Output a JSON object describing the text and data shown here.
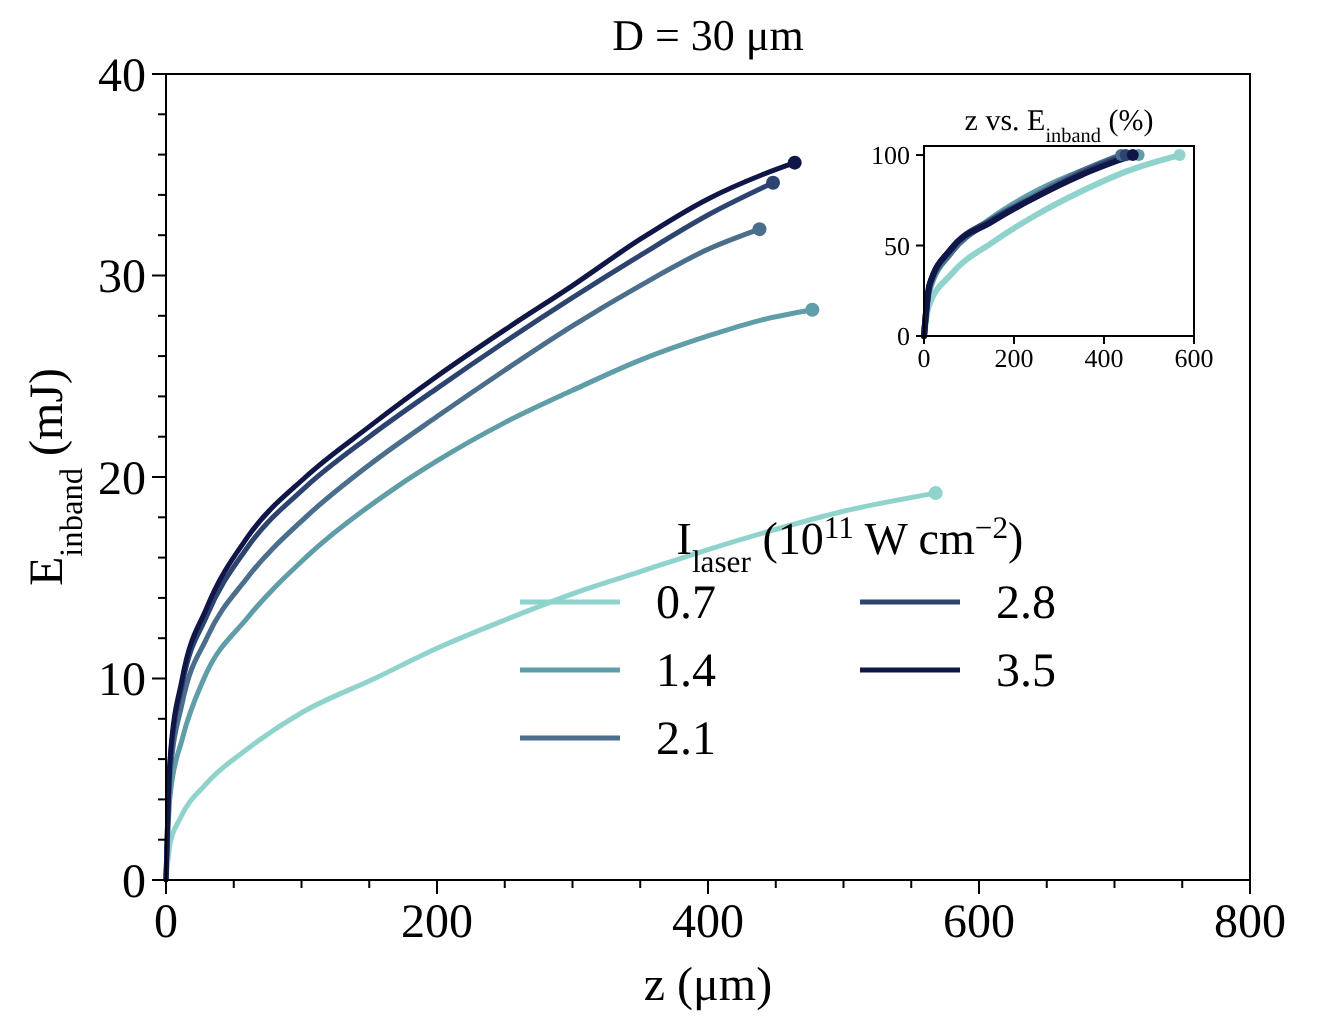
{
  "chart_data": [
    {
      "type": "line",
      "title": "D = 30 μm",
      "xlabel": "z (μm)",
      "ylabel": "E$_{inband}$ (mJ)",
      "legend_title": "I$_{laser}$ (10$^{11}$ W cm$^{−2}$)",
      "legend": "bottom right",
      "xlim": [
        0,
        800
      ],
      "ylim": [
        0,
        40
      ],
      "xticks": [
        0,
        {
          "value": 50,
          "label": null
        },
        {
          "value": 100,
          "label": null
        },
        {
          "value": 150,
          "label": null
        },
        200,
        {
          "value": 250,
          "label": null
        },
        {
          "value": 300,
          "label": null
        },
        {
          "value": 350,
          "label": null
        },
        400,
        {
          "value": 450,
          "label": null
        },
        {
          "value": 500,
          "label": null
        },
        {
          "value": 550,
          "label": null
        },
        600,
        {
          "value": 650,
          "label": null
        },
        {
          "value": 700,
          "label": null
        },
        {
          "value": 750,
          "label": null
        },
        800
      ],
      "yticks": [
        0,
        {
          "value": 2,
          "label": null
        },
        {
          "value": 4,
          "label": null
        },
        {
          "value": 6,
          "label": null
        },
        {
          "value": 8,
          "label": null
        },
        10,
        {
          "value": 12,
          "label": null
        },
        {
          "value": 14,
          "label": null
        },
        {
          "value": 16,
          "label": null
        },
        {
          "value": 18,
          "label": null
        },
        20,
        {
          "value": 22,
          "label": null
        },
        {
          "value": 24,
          "label": null
        },
        {
          "value": 26,
          "label": null
        },
        {
          "value": 28,
          "label": null
        },
        30,
        {
          "value": 32,
          "label": null
        },
        {
          "value": 34,
          "label": null
        },
        {
          "value": 36,
          "label": null
        },
        {
          "value": 38,
          "label": null
        },
        40
      ],
      "series": [
        {
          "name": "0.7",
          "color": "#8fd3cc",
          "x": [
            0,
            3,
            10,
            30,
            60,
            100,
            154,
            200,
            250,
            300,
            350,
            400,
            450,
            500,
            568
          ],
          "values": [
            0,
            1.8,
            3,
            4.8,
            6.5,
            8.3,
            10,
            11.5,
            12.9,
            14.2,
            15.3,
            16.4,
            17.4,
            18.3,
            19.2
          ]
        },
        {
          "name": "1.4",
          "color": "#5f9ea8",
          "x": [
            0,
            3,
            12,
            28,
            60,
            103,
            170,
            200,
            250,
            300,
            350,
            400,
            440,
            477
          ],
          "values": [
            0,
            4.2,
            7,
            10,
            13,
            16,
            19.5,
            20.8,
            22.7,
            24.3,
            25.8,
            27,
            27.8,
            28.3
          ]
        },
        {
          "name": "2.1",
          "color": "#4a6e8c",
          "x": [
            0,
            3,
            12,
            30,
            60,
            103,
            150,
            200,
            250,
            300,
            350,
            400,
            438
          ],
          "values": [
            0,
            5.2,
            8.8,
            12,
            15,
            18,
            20.6,
            23,
            25.3,
            27.5,
            29.5,
            31.3,
            32.3
          ]
        },
        {
          "name": "2.8",
          "color": "#2e4470",
          "x": [
            0,
            3,
            12,
            30,
            60,
            103,
            150,
            200,
            250,
            300,
            350,
            400,
            448
          ],
          "values": [
            0,
            5.8,
            9.7,
            13.1,
            16.5,
            19.5,
            22,
            24.4,
            26.7,
            28.9,
            31,
            33,
            34.6
          ]
        },
        {
          "name": "3.5",
          "color": "#111648",
          "x": [
            0,
            3,
            12,
            30,
            60,
            103,
            150,
            200,
            250,
            300,
            350,
            400,
            440,
            464
          ],
          "values": [
            0,
            6,
            10,
            13.5,
            17,
            20,
            22.5,
            25,
            27.3,
            29.5,
            31.8,
            33.8,
            35,
            35.6
          ]
        },
        {
          "type": "scatter",
          "marker": "circle",
          "x": [
            568,
            477,
            438,
            448,
            464
          ],
          "values": [
            19.2,
            28.3,
            32.3,
            34.6,
            35.6
          ],
          "colors": [
            "#8fd3cc",
            "#5f9ea8",
            "#4a6e8c",
            "#2e4470",
            "#111648"
          ]
        }
      ]
    },
    {
      "type": "line",
      "title": "z vs. E$_{inband}$ (%)",
      "xlim": [
        0,
        600
      ],
      "ylim": [
        0,
        105
      ],
      "xticks": [
        0,
        200,
        400,
        600
      ],
      "yticks": [
        0,
        50,
        100
      ],
      "series": [
        {
          "color": "#8fd3cc",
          "x": [
            0,
            10,
            60,
            154,
            250,
            350,
            450,
            568
          ],
          "values": [
            0,
            16,
            34,
            52,
            67,
            80,
            91,
            100
          ]
        },
        {
          "color": "#5f9ea8",
          "x": [
            0,
            12,
            60,
            150,
            250,
            350,
            477
          ],
          "values": [
            0,
            25,
            46,
            65,
            80,
            91,
            100
          ]
        },
        {
          "color": "#4a6e8c",
          "x": [
            0,
            12,
            60,
            150,
            250,
            350,
            438
          ],
          "values": [
            0,
            27,
            46,
            64,
            78,
            91,
            100
          ]
        },
        {
          "color": "#2e4470",
          "x": [
            0,
            12,
            60,
            150,
            250,
            350,
            448
          ],
          "values": [
            0,
            28,
            48,
            64,
            77,
            90,
            100
          ]
        },
        {
          "color": "#111648",
          "x": [
            0,
            12,
            60,
            150,
            250,
            350,
            464
          ],
          "values": [
            0,
            28,
            48,
            63,
            77,
            89,
            100
          ]
        },
        {
          "type": "scatter",
          "marker": "circle",
          "x": [
            568,
            477,
            438,
            448,
            464
          ],
          "values": [
            100,
            100,
            100,
            100,
            100
          ],
          "colors": [
            "#8fd3cc",
            "#5f9ea8",
            "#4a6e8c",
            "#2e4470",
            "#111648"
          ]
        }
      ]
    }
  ]
}
